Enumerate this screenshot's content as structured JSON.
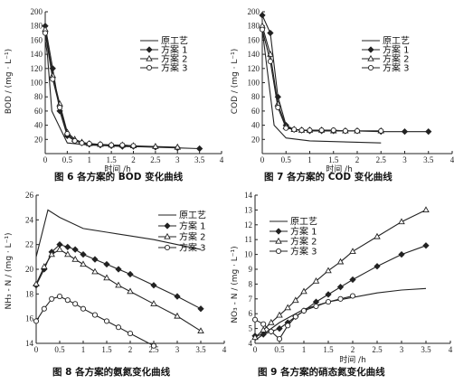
{
  "chart_data": [
    {
      "type": "line",
      "id": "fig6",
      "title": "图 6   各方案的 BOD 变化曲线",
      "xlabel": "时间 /h",
      "ylabel": "BOD / (mg · L⁻¹)",
      "xlim": [
        0,
        4
      ],
      "ylim": [
        0,
        200
      ],
      "xticks": [
        "0",
        "0.5",
        "1",
        "1.5",
        "2",
        "2.5",
        "3",
        "3.5",
        "4"
      ],
      "yticks": [
        "20",
        "40",
        "60",
        "80",
        "100",
        "120",
        "140",
        "160",
        "180",
        "200"
      ],
      "legend": "top-right",
      "series": [
        {
          "name": "原工艺",
          "marker": "none",
          "x": [
            0,
            0.05,
            0.15,
            0.5,
            1,
            1.5,
            2,
            2.5
          ],
          "y": [
            160,
            140,
            60,
            15,
            12,
            11,
            10,
            10
          ]
        },
        {
          "name": "方案 1",
          "marker": "filled-diamond",
          "x": [
            0,
            0.17,
            0.33,
            0.5,
            0.67,
            0.83,
            1,
            1.25,
            1.5,
            1.75,
            2,
            2.5,
            3,
            3.5
          ],
          "y": [
            180,
            120,
            60,
            25,
            18,
            15,
            13,
            12,
            11,
            10,
            10,
            9,
            8,
            7
          ]
        },
        {
          "name": "方案 2",
          "marker": "open-triangle",
          "x": [
            0,
            0.17,
            0.33,
            0.5,
            0.67,
            0.83,
            1,
            1.25,
            1.5,
            1.75,
            2,
            2.5,
            3
          ],
          "y": [
            175,
            110,
            70,
            30,
            20,
            16,
            14,
            13,
            12,
            12,
            11,
            10,
            9
          ]
        },
        {
          "name": "方案 3",
          "marker": "open-circle",
          "x": [
            0,
            0.17,
            0.33,
            0.5,
            0.67,
            0.83,
            1,
            1.25,
            1.5,
            1.75,
            2
          ],
          "y": [
            170,
            105,
            65,
            28,
            18,
            15,
            14,
            13,
            12,
            12,
            11
          ]
        }
      ]
    },
    {
      "type": "line",
      "id": "fig7",
      "title": "图 7   各方案的 COD 变化曲线",
      "xlabel": "时间 /h",
      "ylabel": "COD / (mg · L⁻¹)",
      "xlim": [
        0,
        4
      ],
      "ylim": [
        0,
        200
      ],
      "xticks": [
        "0",
        "0.5",
        "1",
        "1.5",
        "2",
        "2.5",
        "3",
        "3.5",
        "4"
      ],
      "yticks": [
        "20",
        "40",
        "60",
        "80",
        "100",
        "120",
        "140",
        "160",
        "180",
        "200"
      ],
      "legend": "top-right",
      "series": [
        {
          "name": "原工艺",
          "marker": "none",
          "x": [
            0,
            0.1,
            0.25,
            0.5,
            1,
            1.5,
            2,
            2.5
          ],
          "y": [
            175,
            120,
            40,
            22,
            18,
            17,
            16,
            15
          ]
        },
        {
          "name": "方案 1",
          "marker": "filled-diamond",
          "x": [
            0,
            0.17,
            0.33,
            0.5,
            0.67,
            0.83,
            1,
            1.25,
            1.5,
            1.75,
            2,
            2.5,
            3,
            3.5
          ],
          "y": [
            195,
            170,
            80,
            40,
            34,
            33,
            32,
            32,
            32,
            32,
            32,
            31,
            31,
            31
          ]
        },
        {
          "name": "方案 2",
          "marker": "open-triangle",
          "x": [
            0,
            0.17,
            0.33,
            0.5,
            0.67,
            0.83,
            1,
            1.25,
            1.5,
            1.75,
            2,
            2.5
          ],
          "y": [
            180,
            140,
            70,
            38,
            34,
            33,
            33,
            33,
            32,
            32,
            32,
            32
          ]
        },
        {
          "name": "方案 3",
          "marker": "open-circle",
          "x": [
            0,
            0.17,
            0.33,
            0.5,
            0.67,
            0.83,
            1,
            1.25,
            1.5,
            1.75,
            2,
            2.5
          ],
          "y": [
            175,
            130,
            65,
            36,
            34,
            33,
            33,
            33,
            33,
            32,
            32,
            32
          ]
        }
      ]
    },
    {
      "type": "line",
      "id": "fig8",
      "title": "图 8   各方案的氨氮变化曲线",
      "xlabel": "",
      "ylabel": "NH₃ - N / (mg · L⁻¹)",
      "xlim": [
        0,
        4
      ],
      "ylim": [
        14,
        26
      ],
      "xticks": [
        "0",
        "0.5",
        "1",
        "1.5",
        "2",
        "2.5",
        "3",
        "3.5",
        "4"
      ],
      "yticks": [
        "14",
        "16",
        "18",
        "20",
        "22",
        "24",
        "26"
      ],
      "legend": "top-right",
      "series": [
        {
          "name": "原工艺",
          "marker": "none",
          "x": [
            0,
            0.25,
            0.5,
            1,
            1.5,
            2,
            2.5,
            3,
            3.5
          ],
          "y": [
            21,
            24.8,
            24.2,
            23.3,
            23.0,
            22.7,
            22.4,
            22.0,
            21.6
          ]
        },
        {
          "name": "方案 1",
          "marker": "filled-diamond",
          "x": [
            0,
            0.17,
            0.33,
            0.5,
            0.67,
            0.83,
            1,
            1.25,
            1.5,
            1.75,
            2,
            2.5,
            3,
            3.5
          ],
          "y": [
            18.7,
            20,
            21.4,
            22.0,
            21.8,
            21.6,
            21.2,
            20.8,
            20.4,
            20.0,
            19.6,
            18.7,
            17.8,
            16.8
          ]
        },
        {
          "name": "方案 2",
          "marker": "open-triangle",
          "x": [
            0,
            0.17,
            0.33,
            0.5,
            0.67,
            0.83,
            1,
            1.25,
            1.5,
            1.75,
            2,
            2.5,
            3,
            3.5
          ],
          "y": [
            18.8,
            20.2,
            21.2,
            21.6,
            21.2,
            20.8,
            20.4,
            19.8,
            19.3,
            18.7,
            18.2,
            17.2,
            16.2,
            15.0
          ]
        },
        {
          "name": "方案 3",
          "marker": "open-circle",
          "x": [
            0,
            0.17,
            0.33,
            0.5,
            0.67,
            0.83,
            1,
            1.25,
            1.5,
            1.75,
            2,
            2.5
          ],
          "y": [
            15.8,
            16.8,
            17.6,
            17.8,
            17.5,
            17.2,
            16.8,
            16.3,
            15.8,
            15.3,
            14.8,
            13.8
          ]
        }
      ]
    },
    {
      "type": "line",
      "id": "fig9",
      "title": "图 9   各方案的硝态氮变化曲线",
      "xlabel": "时间 /h",
      "ylabel": "NO₃ - N / (mg · L⁻¹)",
      "xlim": [
        0,
        4
      ],
      "ylim": [
        4,
        14
      ],
      "xticks": [
        "0",
        "0.5",
        "1",
        "1.5",
        "2",
        "2.5",
        "3",
        "3.5",
        "4"
      ],
      "yticks": [
        "4",
        "5",
        "6",
        "7",
        "8",
        "9",
        "10",
        "11",
        "12",
        "13",
        "14"
      ],
      "legend": "top-left",
      "series": [
        {
          "name": "原工艺",
          "marker": "none",
          "x": [
            0,
            0.5,
            1,
            1.5,
            2,
            2.5,
            3,
            3.5
          ],
          "y": [
            4.2,
            5.4,
            6.3,
            6.8,
            7.1,
            7.4,
            7.6,
            7.7
          ]
        },
        {
          "name": "方案 1",
          "marker": "filled-diamond",
          "x": [
            0,
            0.17,
            0.33,
            0.5,
            0.67,
            0.83,
            1,
            1.25,
            1.5,
            1.75,
            2,
            2.5,
            3,
            3.5
          ],
          "y": [
            4.5,
            4.6,
            4.8,
            5.0,
            5.4,
            5.8,
            6.2,
            6.8,
            7.3,
            7.8,
            8.3,
            9.2,
            10.0,
            10.6
          ]
        },
        {
          "name": "方案 2",
          "marker": "open-triangle",
          "x": [
            0,
            0.17,
            0.33,
            0.5,
            0.67,
            0.83,
            1,
            1.25,
            1.5,
            1.75,
            2,
            2.5,
            3,
            3.5
          ],
          "y": [
            4.4,
            4.9,
            5.4,
            5.9,
            6.4,
            6.9,
            7.5,
            8.2,
            8.9,
            9.5,
            10.2,
            11.2,
            12.2,
            13.0
          ]
        },
        {
          "name": "方案 3",
          "marker": "open-circle",
          "x": [
            0,
            0.17,
            0.33,
            0.5,
            0.67,
            0.83,
            1,
            1.25,
            1.5,
            1.75,
            2
          ],
          "y": [
            5.6,
            5.3,
            4.8,
            4.3,
            5.2,
            5.8,
            6.2,
            6.5,
            6.8,
            7.0,
            7.2
          ]
        }
      ]
    }
  ]
}
